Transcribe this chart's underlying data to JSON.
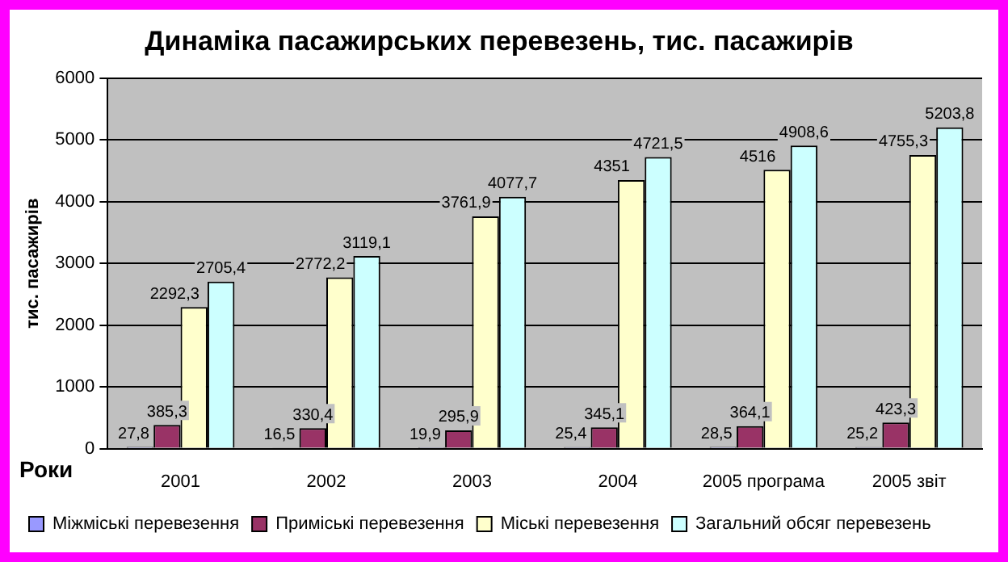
{
  "chart_data": {
    "type": "bar",
    "title": "Динаміка пасажирських перевезень, тис. пасажирів",
    "ylabel": "тис. пасажирів",
    "xlabel": "Роки",
    "categories": [
      "2001",
      "2002",
      "2003",
      "2004",
      "2005 програма",
      "2005 звіт"
    ],
    "series": [
      {
        "name": "Міжміські перевезення",
        "color": "#9999ff",
        "values": [
          27.8,
          16.5,
          19.9,
          25.4,
          28.5,
          25.2
        ],
        "value_labels": [
          "27,8",
          "16,5",
          "19,9",
          "25,4",
          "28,5",
          "25,2"
        ]
      },
      {
        "name": "Приміські перевезення",
        "color": "#993366",
        "values": [
          385.3,
          330.4,
          295.9,
          345.1,
          364.1,
          423.3
        ],
        "value_labels": [
          "385,3",
          "330,4",
          "295,9",
          "345,1",
          "364,1",
          "423,3"
        ]
      },
      {
        "name": "Міські перевезення",
        "color": "#ffffcc",
        "values": [
          2292.3,
          2772.2,
          3761.9,
          4351,
          4516,
          4755.3
        ],
        "value_labels": [
          "2292,3",
          "2772,2",
          "3761,9",
          "4351",
          "4516",
          "4755,3"
        ]
      },
      {
        "name": "Загальний обсяг перевезень",
        "color": "#ccffff",
        "values": [
          2705.4,
          3119.1,
          4077.7,
          4721.5,
          4908.6,
          5203.8
        ],
        "value_labels": [
          "2705,4",
          "3119,1",
          "4077,7",
          "4721,5",
          "4908,6",
          "5203,8"
        ]
      }
    ],
    "ylim": [
      0,
      6000
    ],
    "yticks": [
      0,
      1000,
      2000,
      3000,
      4000,
      5000,
      6000
    ],
    "grid": "y",
    "legend": "bottom left"
  }
}
